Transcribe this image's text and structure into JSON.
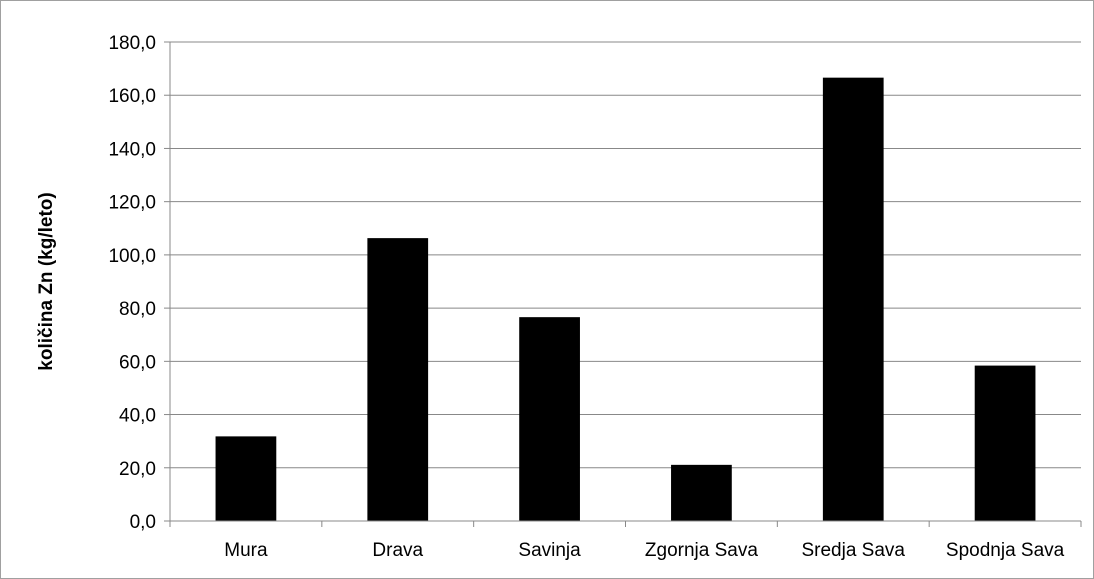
{
  "chart_data": {
    "type": "bar",
    "title": "",
    "xlabel": "",
    "ylabel": "količina Zn (kg/leto)",
    "categories": [
      "Mura",
      "Drava",
      "Savinja",
      "Zgornja Sava",
      "Sredja Sava",
      "Spodnja Sava"
    ],
    "values": [
      31.8,
      106.3,
      76.6,
      21.1,
      166.6,
      58.4
    ],
    "ylim": [
      0,
      180
    ],
    "yticks": [
      "0,0",
      "20,0",
      "40,0",
      "60,0",
      "80,0",
      "100,0",
      "120,0",
      "140,0",
      "160,0",
      "180,0"
    ],
    "grid": true,
    "legend": "none",
    "colors": {
      "bar": "#000000",
      "grid": "#888888",
      "axis": "#888888",
      "border": "#a0a0a0"
    }
  }
}
